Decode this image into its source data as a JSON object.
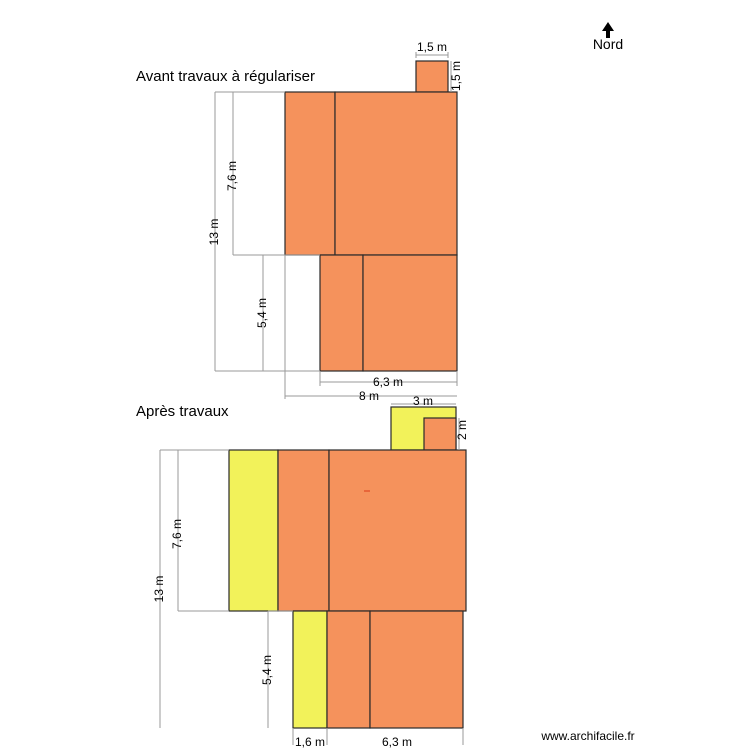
{
  "colors": {
    "existing": "#f5925c",
    "extension": "#f2f25a",
    "outline": "#2a2a2a",
    "dimension_line": "#9a9a9a",
    "marker": "#e4572e"
  },
  "north": {
    "label": "Nord",
    "icon": "north-arrow-icon"
  },
  "before": {
    "title": "Avant travaux à régulariser",
    "dims": {
      "chimney_width": "1,5 m",
      "chimney_height": "1,5 m",
      "upper_height": "7,6 m",
      "total_height": "13 m",
      "lower_height": "5,4 m",
      "lower_width": "6,3 m",
      "total_width": "8 m"
    }
  },
  "after": {
    "title": "Après travaux",
    "dims": {
      "annex_width": "3 m",
      "annex_height": "2 m",
      "upper_height": "7,6 m",
      "total_height": "13 m",
      "lower_height": "5,4 m",
      "extension_width": "1,6 m",
      "lower_width": "6,3 m"
    }
  },
  "watermark": "www.archifacile.fr"
}
